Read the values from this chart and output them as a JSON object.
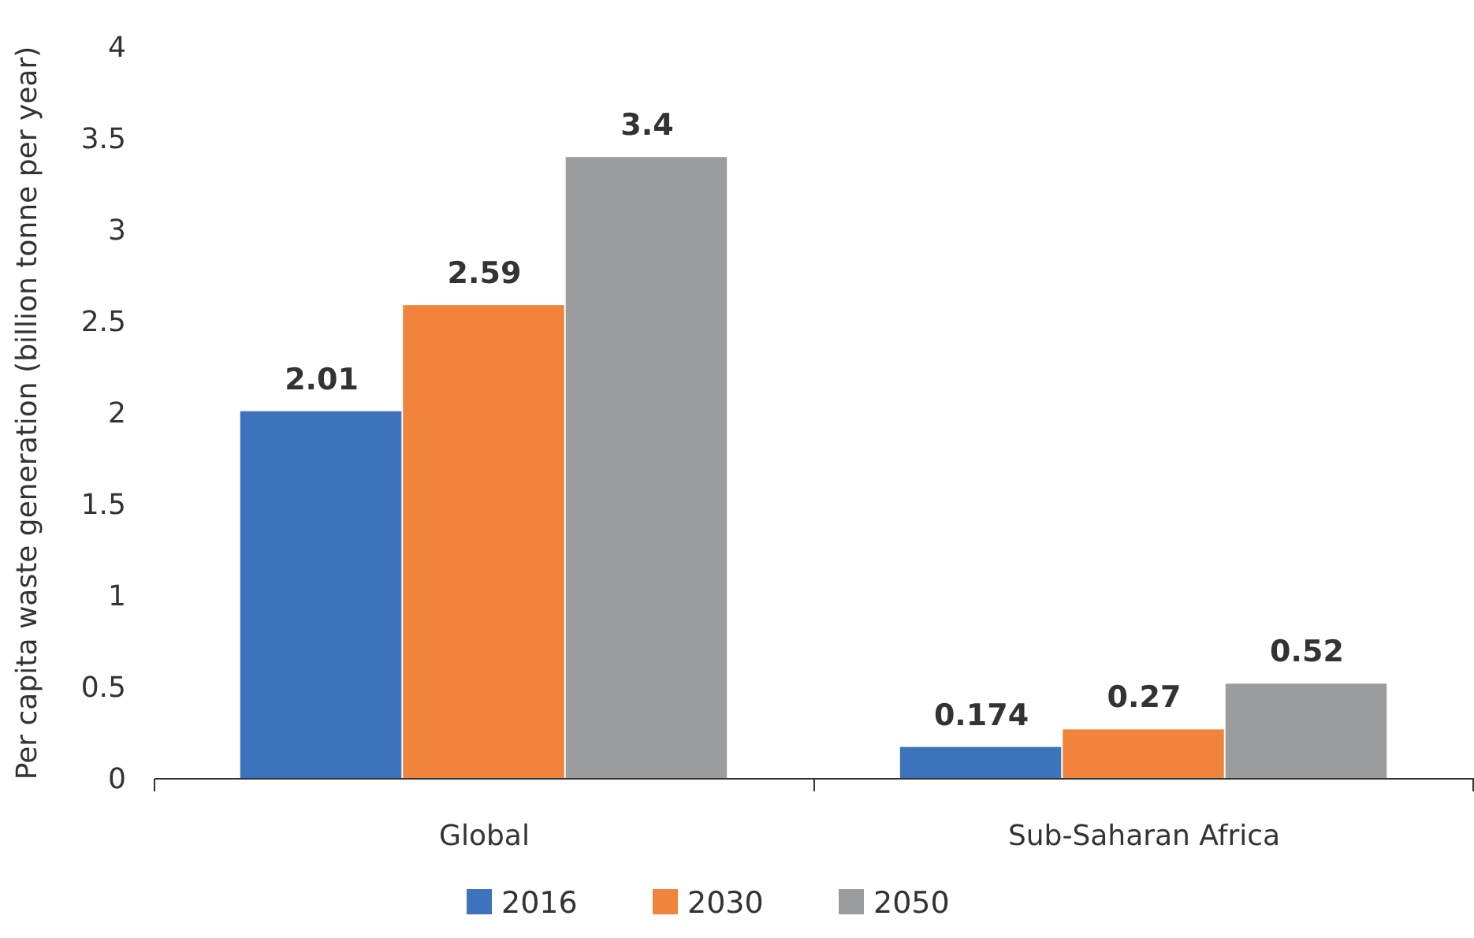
{
  "chart_data": {
    "type": "bar",
    "ylabel": "Per capita waste generation (billion tonne per year)",
    "categories": [
      "Global",
      "Sub-Saharan Africa"
    ],
    "series": [
      {
        "name": "2016",
        "color": "#3d72bd",
        "values": [
          2.01,
          0.174
        ]
      },
      {
        "name": "2030",
        "color": "#f0843c",
        "values": [
          2.59,
          0.27
        ]
      },
      {
        "name": "2050",
        "color": "#9a9c9d",
        "values": [
          3.4,
          0.52
        ]
      }
    ],
    "ylim": [
      0,
      4
    ],
    "yticks": [
      0,
      0.5,
      1,
      1.5,
      2,
      2.5,
      3,
      3.5,
      4
    ],
    "data_labels": true,
    "legend": "bottom",
    "grid": false
  }
}
